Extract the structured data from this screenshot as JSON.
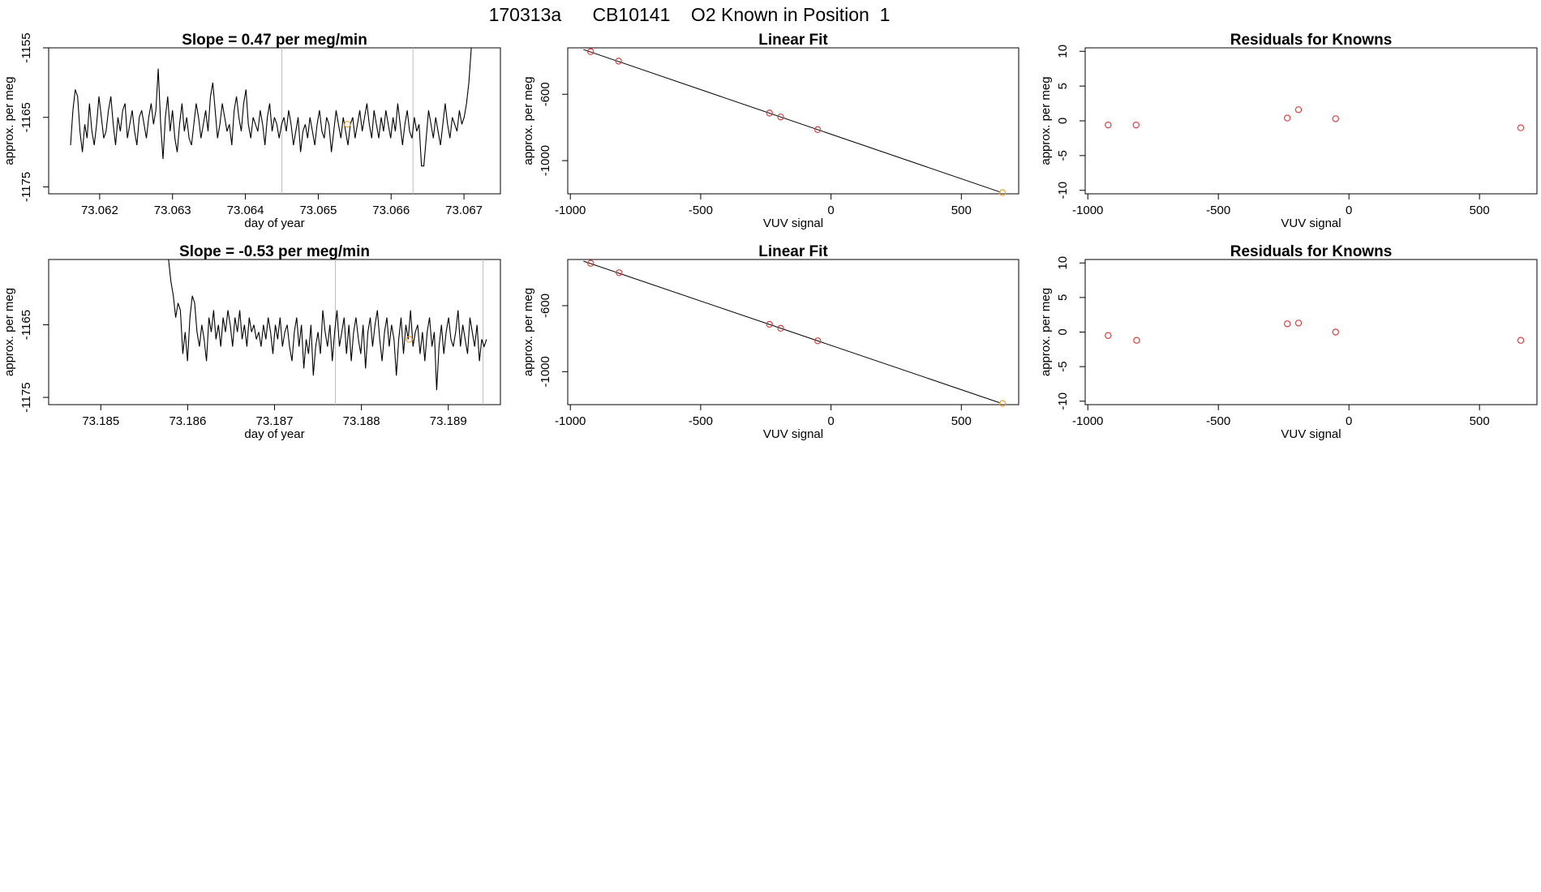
{
  "page_title": "170313a      CB10141    O2 Known in Position  1",
  "colors": {
    "line": "#000000",
    "vline": "#bdbdbd",
    "red": "#d94040",
    "orange": "#f0a030"
  },
  "chart_data": [
    {
      "id": "ts1",
      "type": "line",
      "title": "Slope =  0.47  per meg/min",
      "xlabel": "day of year",
      "ylabel": "approx. per meg",
      "xlim": [
        73.0613,
        73.0675
      ],
      "ylim": [
        -1176,
        -1155
      ],
      "xticks": [
        73.062,
        73.063,
        73.064,
        73.065,
        73.066,
        73.067
      ],
      "xtick_labels": [
        "73.062",
        "73.063",
        "73.064",
        "73.065",
        "73.066",
        "73.067"
      ],
      "yticks": [
        -1175,
        -1165,
        -1155
      ],
      "ytick_labels": [
        "-1175",
        "-1165",
        "-1155"
      ],
      "vlines": [
        73.0645,
        73.0663
      ],
      "x_start": 73.0616,
      "x_end": 73.0671,
      "values": [
        -1169,
        -1164,
        -1161,
        -1162,
        -1167,
        -1170,
        -1166,
        -1168,
        -1163,
        -1167,
        -1169,
        -1166,
        -1162,
        -1165,
        -1168,
        -1167,
        -1164,
        -1162,
        -1166,
        -1169,
        -1165,
        -1167,
        -1164,
        -1163,
        -1168,
        -1166,
        -1164,
        -1167,
        -1169,
        -1165,
        -1164,
        -1166,
        -1168,
        -1165,
        -1163,
        -1166,
        -1164,
        -1158,
        -1166,
        -1171,
        -1165,
        -1162,
        -1167,
        -1164,
        -1168,
        -1170,
        -1166,
        -1163,
        -1167,
        -1165,
        -1168,
        -1169,
        -1166,
        -1163,
        -1165,
        -1168,
        -1166,
        -1164,
        -1167,
        -1162,
        -1160,
        -1164,
        -1168,
        -1166,
        -1163,
        -1165,
        -1167,
        -1166,
        -1169,
        -1164,
        -1162,
        -1165,
        -1167,
        -1163,
        -1161,
        -1166,
        -1168,
        -1165,
        -1166,
        -1167,
        -1164,
        -1166,
        -1169,
        -1165,
        -1163,
        -1167,
        -1165,
        -1166,
        -1168,
        -1166,
        -1165,
        -1167,
        -1164,
        -1166,
        -1169,
        -1167,
        -1165,
        -1170,
        -1167,
        -1166,
        -1168,
        -1165,
        -1167,
        -1169,
        -1166,
        -1164,
        -1167,
        -1168,
        -1165,
        -1166,
        -1170,
        -1167,
        -1164,
        -1166,
        -1168,
        -1165,
        -1167,
        -1169,
        -1166,
        -1165,
        -1168,
        -1166,
        -1164,
        -1167,
        -1165,
        -1163,
        -1166,
        -1168,
        -1164,
        -1166,
        -1168,
        -1165,
        -1167,
        -1164,
        -1166,
        -1168,
        -1165,
        -1167,
        -1163,
        -1166,
        -1169,
        -1166,
        -1164,
        -1167,
        -1168,
        -1165,
        -1167,
        -1166,
        -1172,
        -1172,
        -1168,
        -1164,
        -1166,
        -1168,
        -1165,
        -1167,
        -1169,
        -1166,
        -1163,
        -1166,
        -1168,
        -1165,
        -1166,
        -1167,
        -1164,
        -1166,
        -1165,
        -1163,
        -1160,
        -1155
      ],
      "markers": [
        {
          "x": 73.0654,
          "y": -1166,
          "color": "orange"
        }
      ]
    },
    {
      "id": "fit1",
      "type": "scatter",
      "title": "Linear Fit",
      "xlabel": "VUV signal",
      "ylabel": "approx. per meg",
      "xlim": [
        -1010,
        720
      ],
      "ylim": [
        -1200,
        -320
      ],
      "xticks": [
        -1000,
        -500,
        0,
        500
      ],
      "xtick_labels": [
        "-1000",
        "-500",
        "0",
        "500"
      ],
      "yticks": [
        -1000,
        -600
      ],
      "ytick_labels": [
        "-1000",
        "-600"
      ],
      "fit_line": {
        "x": [
          -950,
          650
        ],
        "y": [
          -330,
          -1190
        ]
      },
      "points": [
        {
          "x": -922,
          "y": -343,
          "color": "red"
        },
        {
          "x": -815,
          "y": -400,
          "color": "red"
        },
        {
          "x": -236,
          "y": -713,
          "color": "red"
        },
        {
          "x": -193,
          "y": -737,
          "color": "red"
        },
        {
          "x": -51,
          "y": -813,
          "color": "red"
        },
        {
          "x": 658,
          "y": -1193,
          "color": "orange"
        }
      ]
    },
    {
      "id": "res1",
      "type": "scatter",
      "title": "Residuals for Knowns",
      "xlabel": "VUV signal",
      "ylabel": "approx. per meg",
      "xlim": [
        -1010,
        720
      ],
      "ylim": [
        -10.5,
        10.5
      ],
      "xticks": [
        -1000,
        -500,
        0,
        500
      ],
      "xtick_labels": [
        "-1000",
        "-500",
        "0",
        "500"
      ],
      "yticks": [
        -10,
        -5,
        0,
        5,
        10
      ],
      "ytick_labels": [
        "-10",
        "-5",
        "0",
        "5",
        "10"
      ],
      "points": [
        {
          "x": -922,
          "y": -0.6,
          "color": "red"
        },
        {
          "x": -815,
          "y": -0.6,
          "color": "red"
        },
        {
          "x": -236,
          "y": 0.4,
          "color": "red"
        },
        {
          "x": -193,
          "y": 1.6,
          "color": "red"
        },
        {
          "x": -51,
          "y": 0.3,
          "color": "red"
        },
        {
          "x": 658,
          "y": -1.0,
          "color": "red"
        }
      ]
    },
    {
      "id": "ts2",
      "type": "line",
      "title": "Slope =  -0.53  per meg/min",
      "xlabel": "day of year",
      "ylabel": "approx. per meg",
      "xlim": [
        73.1844,
        73.1896
      ],
      "ylim": [
        -1176,
        -1156
      ],
      "xticks": [
        73.185,
        73.186,
        73.187,
        73.188,
        73.189
      ],
      "xtick_labels": [
        "73.185",
        "73.186",
        "73.187",
        "73.188",
        "73.189"
      ],
      "yticks": [
        -1175,
        -1165
      ],
      "ytick_labels": [
        "-1175",
        "-1165"
      ],
      "vlines": [
        73.1877,
        73.1894
      ],
      "x_start": 73.18578,
      "x_end": 73.18944,
      "values": [
        -1156,
        -1159,
        -1161,
        -1164,
        -1162,
        -1163,
        -1169,
        -1166,
        -1170,
        -1164,
        -1161,
        -1162,
        -1166,
        -1168,
        -1165,
        -1167,
        -1170,
        -1164,
        -1166,
        -1163,
        -1167,
        -1165,
        -1168,
        -1164,
        -1166,
        -1163,
        -1165,
        -1168,
        -1164,
        -1166,
        -1163,
        -1167,
        -1165,
        -1168,
        -1164,
        -1166,
        -1165,
        -1167,
        -1166,
        -1168,
        -1165,
        -1167,
        -1164,
        -1166,
        -1169,
        -1165,
        -1167,
        -1164,
        -1168,
        -1166,
        -1165,
        -1168,
        -1170,
        -1166,
        -1164,
        -1168,
        -1165,
        -1171,
        -1167,
        -1169,
        -1165,
        -1172,
        -1168,
        -1166,
        -1169,
        -1163,
        -1166,
        -1168,
        -1165,
        -1170,
        -1166,
        -1163,
        -1168,
        -1166,
        -1164,
        -1169,
        -1165,
        -1170,
        -1166,
        -1164,
        -1167,
        -1169,
        -1165,
        -1171,
        -1166,
        -1164,
        -1168,
        -1165,
        -1163,
        -1167,
        -1170,
        -1166,
        -1164,
        -1168,
        -1165,
        -1167,
        -1172,
        -1167,
        -1164,
        -1169,
        -1165,
        -1167,
        -1163,
        -1168,
        -1166,
        -1165,
        -1169,
        -1166,
        -1170,
        -1166,
        -1164,
        -1168,
        -1166,
        -1174,
        -1168,
        -1165,
        -1169,
        -1166,
        -1164,
        -1167,
        -1168,
        -1166,
        -1163,
        -1168,
        -1165,
        -1167,
        -1169,
        -1164,
        -1166,
        -1168,
        -1165,
        -1170,
        -1167,
        -1168,
        -1167
      ],
      "markers": [
        {
          "x": 73.18855,
          "y": -1167,
          "color": "orange"
        }
      ]
    },
    {
      "id": "fit2",
      "type": "scatter",
      "title": "Linear Fit",
      "xlabel": "VUV signal",
      "ylabel": "approx. per meg",
      "xlim": [
        -1010,
        720
      ],
      "ylim": [
        -1200,
        -320
      ],
      "xticks": [
        -1000,
        -500,
        0,
        500
      ],
      "xtick_labels": [
        "-1000",
        "-500",
        "0",
        "500"
      ],
      "yticks": [
        -1000,
        -600
      ],
      "ytick_labels": [
        "-1000",
        "-600"
      ],
      "fit_line": {
        "x": [
          -950,
          650
        ],
        "y": [
          -330,
          -1190
        ]
      },
      "points": [
        {
          "x": -922,
          "y": -343,
          "color": "red"
        },
        {
          "x": -813,
          "y": -400,
          "color": "red"
        },
        {
          "x": -236,
          "y": -713,
          "color": "red"
        },
        {
          "x": -193,
          "y": -737,
          "color": "red"
        },
        {
          "x": -51,
          "y": -813,
          "color": "red"
        },
        {
          "x": 658,
          "y": -1193,
          "color": "orange"
        }
      ]
    },
    {
      "id": "res2",
      "type": "scatter",
      "title": "Residuals for Knowns",
      "xlabel": "VUV signal",
      "ylabel": "approx. per meg",
      "xlim": [
        -1010,
        720
      ],
      "ylim": [
        -10.5,
        10.5
      ],
      "xticks": [
        -1000,
        -500,
        0,
        500
      ],
      "xtick_labels": [
        "-1000",
        "-500",
        "0",
        "500"
      ],
      "yticks": [
        -10,
        -5,
        0,
        5,
        10
      ],
      "ytick_labels": [
        "-10",
        "-5",
        "0",
        "5",
        "10"
      ],
      "points": [
        {
          "x": -922,
          "y": -0.5,
          "color": "red"
        },
        {
          "x": -813,
          "y": -1.2,
          "color": "red"
        },
        {
          "x": -236,
          "y": 1.2,
          "color": "red"
        },
        {
          "x": -193,
          "y": 1.3,
          "color": "red"
        },
        {
          "x": -51,
          "y": 0.0,
          "color": "red"
        },
        {
          "x": 658,
          "y": -1.2,
          "color": "red"
        }
      ]
    }
  ]
}
